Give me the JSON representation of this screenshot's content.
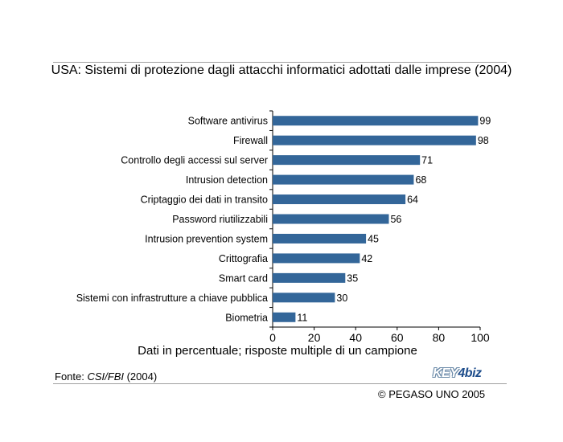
{
  "title": "USA: Sistemi di protezione dagli attacchi informatici adottati dalle imprese (2004)",
  "caption": "Dati in percentuale; risposte multiple di un campione",
  "source": {
    "prefix": "Fonte: ",
    "name": "CSI/FBI",
    "year": " (2004)"
  },
  "logo": {
    "left": "KEY",
    "right": "4biz"
  },
  "copyright": "© PEGASO UNO 2005",
  "chart_data": {
    "type": "bar",
    "orientation": "horizontal",
    "categories": [
      "Software antivirus",
      "Firewall",
      "Controllo degli accessi sul server",
      "Intrusion detection",
      "Criptaggio dei dati in transito",
      "Password riutilizzabili",
      "Intrusion prevention system",
      "Crittografia",
      "Smart card",
      "Sistemi con infrastrutture a chiave pubblica",
      "Biometria"
    ],
    "values": [
      99,
      98,
      71,
      68,
      64,
      56,
      45,
      42,
      35,
      30,
      11
    ],
    "data_labels": [
      "99",
      "98",
      "71",
      "68",
      "64",
      "56",
      "45",
      "42",
      "35",
      "30",
      "11"
    ],
    "xlim": [
      0,
      100
    ],
    "xticks": [
      0,
      20,
      40,
      60,
      80,
      100
    ],
    "xlabel": "Dati in percentuale; risposte multiple di un campione",
    "ylabel": "",
    "bar_color": "#336699",
    "grid": false
  }
}
